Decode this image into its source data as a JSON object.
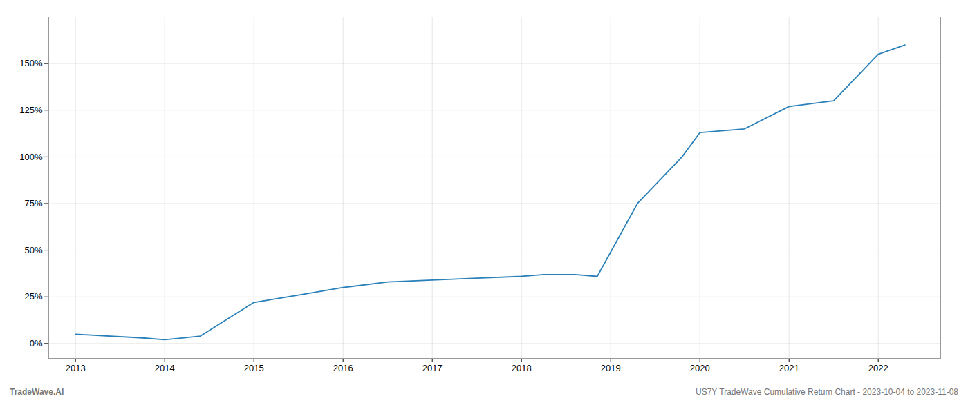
{
  "chart_data": {
    "type": "line",
    "x": [
      2013.0,
      2013.75,
      2014.0,
      2014.4,
      2015.0,
      2015.5,
      2016.0,
      2016.5,
      2017.0,
      2017.5,
      2018.0,
      2018.25,
      2018.6,
      2018.85,
      2019.3,
      2019.8,
      2020.0,
      2020.5,
      2021.0,
      2021.5,
      2022.0,
      2022.3
    ],
    "values": [
      5,
      3,
      2,
      4,
      22,
      26,
      30,
      33,
      34,
      35,
      36,
      37,
      37,
      36,
      75,
      100,
      113,
      115,
      127,
      130,
      155,
      160
    ],
    "color": "#2980b9",
    "xlim": [
      2012.7,
      2022.7
    ],
    "xticks": [
      2013,
      2014,
      2015,
      2016,
      2017,
      2018,
      2019,
      2020,
      2021,
      2022
    ],
    "ylim": [
      -8,
      175
    ],
    "yticks": [
      {
        "value": 0,
        "label": "0%"
      },
      {
        "value": 25,
        "label": "25%"
      },
      {
        "value": 50,
        "label": "50%"
      },
      {
        "value": 75,
        "label": "75%"
      },
      {
        "value": 100,
        "label": "100%"
      },
      {
        "value": 125,
        "label": "125%"
      },
      {
        "value": 150,
        "label": "150%"
      }
    ],
    "grid": true,
    "annotations": [
      "TradeWave.AI",
      "US7Y TradeWave Cumulative Return Chart - 2023-10-04 to 2023-11-08"
    ]
  }
}
